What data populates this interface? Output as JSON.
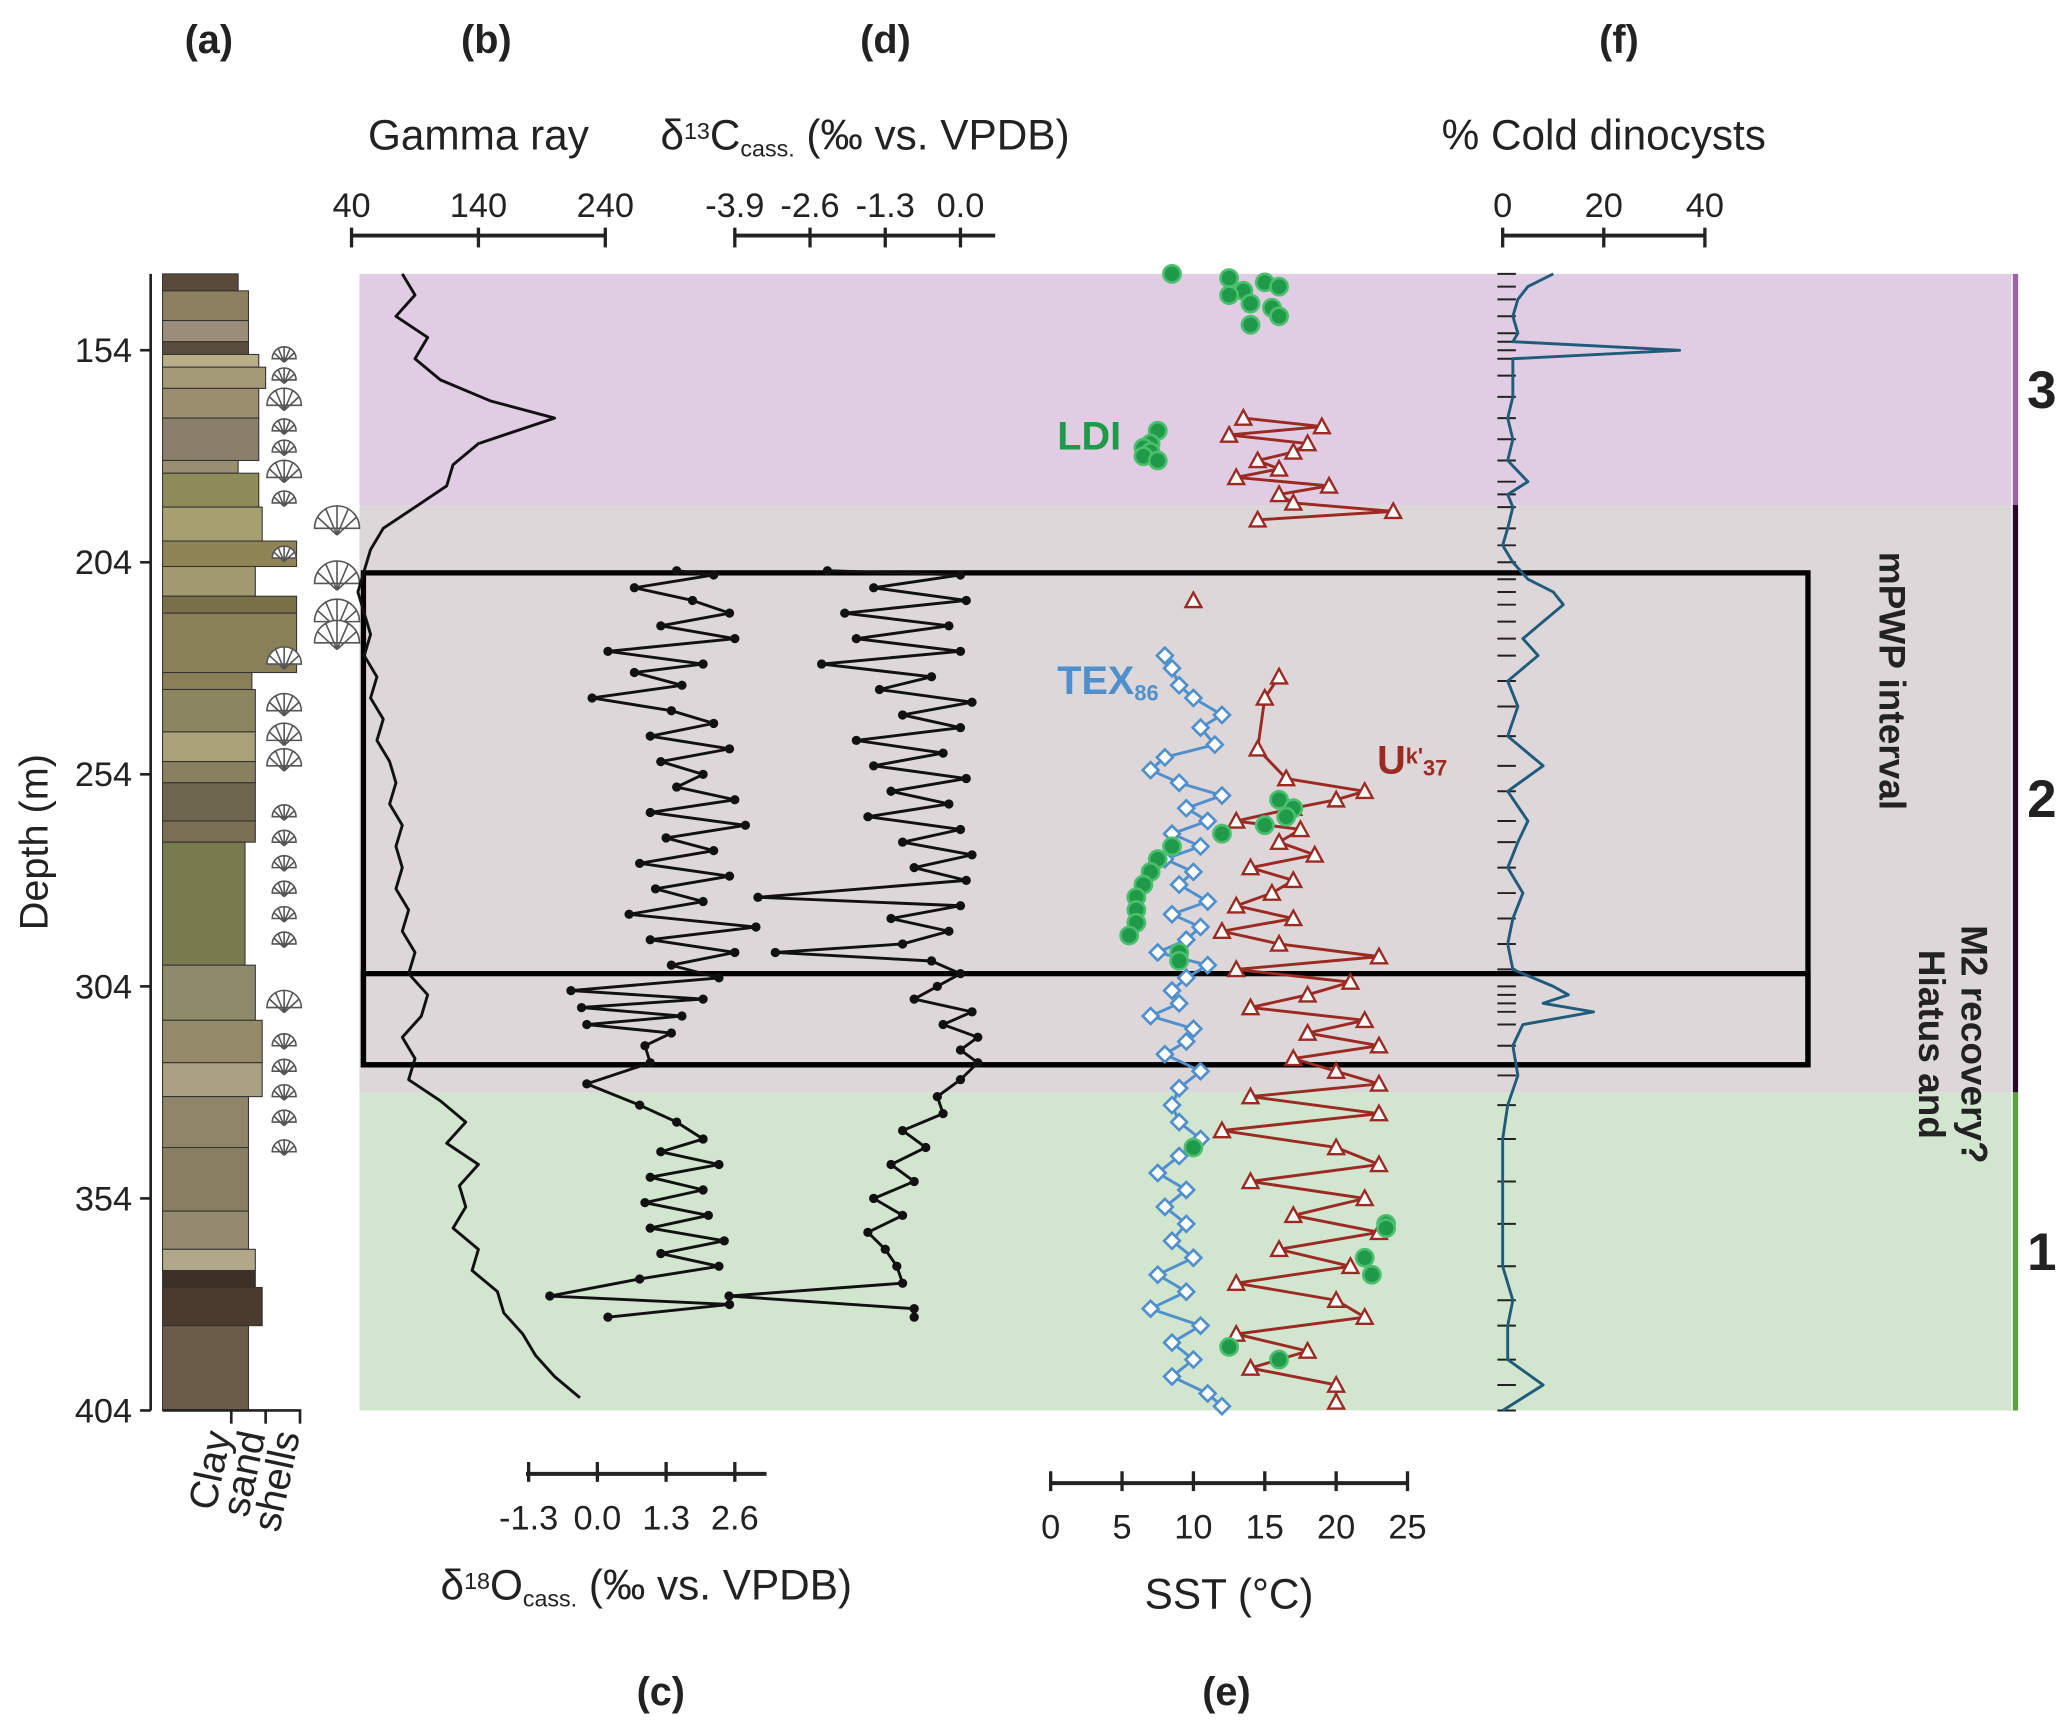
{
  "chart_data": [
    {
      "type": "lithology",
      "label": "(a)",
      "ylabel": "Depth (m)",
      "ylim": [
        136,
        404
      ],
      "yticks": [
        154,
        204,
        254,
        304,
        354,
        404
      ],
      "xcategories": [
        "Clay",
        "sand",
        "shells"
      ],
      "layers": {
        "depth_top": [
          136,
          140,
          147,
          152,
          155,
          158,
          163,
          170,
          180,
          183,
          191,
          199,
          205,
          212,
          216,
          230,
          234,
          244,
          251,
          256,
          265,
          270,
          299,
          312,
          322,
          330,
          342,
          357,
          366,
          371,
          375,
          384
        ],
        "depth_bottom": [
          140,
          147,
          152,
          155,
          158,
          163,
          170,
          180,
          183,
          191,
          199,
          205,
          212,
          216,
          230,
          234,
          244,
          251,
          256,
          265,
          270,
          299,
          312,
          322,
          330,
          342,
          357,
          366,
          371,
          375,
          384,
          404
        ],
        "grain": [
          1.1,
          1.25,
          1.25,
          1.25,
          1.4,
          1.5,
          1.4,
          1.4,
          1.1,
          1.4,
          1.45,
          1.95,
          1.35,
          1.95,
          1.95,
          1.3,
          1.35,
          1.35,
          1.35,
          1.35,
          1.35,
          1.2,
          1.35,
          1.45,
          1.45,
          1.25,
          1.25,
          1.25,
          1.35,
          1.35,
          1.45,
          1.25
        ],
        "colors": [
          "#5a4a3a",
          "#8d8060",
          "#9a8e7a",
          "#5b4d3d",
          "#b8ae8a",
          "#a49a78",
          "#9a8e6e",
          "#8a7f6a",
          "#9a8e70",
          "#8e8a5a",
          "#a6a070",
          "#8e8455",
          "#a29a70",
          "#7a7048",
          "#8a8058",
          "#8a8058",
          "#8b8660",
          "#a9a178",
          "#8a8060",
          "#6f6650",
          "#7a6f55",
          "#7a7a4f",
          "#8e8a6c",
          "#948a6a",
          "#a8a080",
          "#8f8568",
          "#8a7e62",
          "#938a70",
          "#b0a888",
          "#3c3028",
          "#4a3b2e",
          "#6a5c48"
        ]
      },
      "shells": {
        "depth": [
          156,
          161,
          167,
          173,
          178,
          184,
          190,
          196,
          203,
          209,
          218,
          223,
          228,
          239,
          246,
          252,
          264,
          270,
          276,
          282,
          288,
          294,
          309,
          318,
          324,
          330,
          336,
          343
        ],
        "size": [
          1,
          1,
          2,
          1,
          1,
          2,
          1,
          3,
          1,
          3,
          3,
          3,
          2,
          2,
          2,
          2,
          1,
          1,
          1,
          1,
          1,
          1,
          2,
          1,
          1,
          1,
          1,
          1
        ]
      },
      "zones": [
        {
          "label": "3",
          "from": 136,
          "to": 190.5,
          "color": "#e0cde3",
          "bar_color": "#a060a8"
        },
        {
          "label": "2",
          "from": 190.5,
          "to": 329,
          "color": "#ddd7d9",
          "bar_color": "#2a0a2a"
        },
        {
          "label": "1",
          "from": 329,
          "to": 404,
          "color": "#d2e5cf",
          "bar_color": "#5aa040"
        }
      ],
      "boxes": [
        {
          "label": [
            "mPWP interval"
          ],
          "from": 206.5,
          "to": 322.5
        },
        {
          "label": [
            "Hiatus and",
            "M2 recovery?"
          ],
          "from": 301,
          "to": 322.5
        }
      ]
    },
    {
      "type": "line",
      "label": "(b)",
      "title": "Gamma ray",
      "xlim": [
        40,
        240
      ],
      "xticks": [
        40,
        140,
        240
      ],
      "color": "#111111",
      "markers": false,
      "depth": [
        136,
        141,
        146,
        151,
        156,
        161,
        166,
        170,
        176,
        181,
        186,
        191,
        196,
        201,
        206,
        211,
        216,
        221,
        226,
        231,
        236,
        241,
        246,
        251,
        256,
        261,
        266,
        271,
        276,
        281,
        286,
        291,
        296,
        301,
        306,
        311,
        316,
        321,
        326,
        331,
        336,
        341,
        346,
        351,
        356,
        361,
        366,
        371,
        376,
        381,
        386,
        391,
        396,
        401
      ],
      "values": [
        80,
        90,
        75,
        100,
        90,
        110,
        150,
        200,
        140,
        120,
        115,
        90,
        65,
        55,
        50,
        45,
        50,
        55,
        50,
        60,
        55,
        65,
        60,
        70,
        75,
        70,
        80,
        75,
        80,
        75,
        85,
        80,
        90,
        85,
        100,
        95,
        80,
        90,
        85,
        110,
        130,
        115,
        140,
        125,
        130,
        120,
        140,
        135,
        155,
        160,
        175,
        185,
        200,
        220
      ]
    },
    {
      "type": "line",
      "label": "(c)",
      "xlabel": {
        "text": "δ",
        "sup": "18",
        "main": "O",
        "sub": "cass.",
        "rest": " (‰ vs. VPDB)"
      },
      "xlim": [
        -1.35,
        3.2
      ],
      "xticks": [
        -1.3,
        {
          "value": 0,
          "label": "0.0"
        },
        1.3,
        2.6
      ],
      "color": "#111111",
      "markers": true,
      "depth": [
        206,
        207,
        210,
        213,
        216,
        219,
        222,
        225,
        228,
        230,
        233,
        236,
        239,
        242,
        245,
        248,
        251,
        254,
        257,
        260,
        263,
        266,
        269,
        272,
        275,
        278,
        281,
        284,
        287,
        290,
        293,
        296,
        299,
        302,
        305,
        307,
        309,
        311,
        313,
        315,
        318,
        322,
        327,
        332,
        336,
        340,
        343,
        346,
        349,
        352,
        355,
        358,
        361,
        364,
        367,
        370,
        373,
        377,
        379,
        382
      ],
      "values": [
        1.5,
        2.2,
        0.7,
        1.8,
        2.5,
        1.2,
        2.6,
        0.2,
        2.0,
        0.7,
        1.6,
        -0.1,
        1.4,
        2.2,
        1.0,
        2.5,
        1.2,
        2.0,
        1.5,
        2.6,
        1.0,
        2.8,
        1.3,
        2.2,
        0.8,
        2.5,
        1.1,
        2.0,
        0.6,
        3.0,
        1.0,
        2.6,
        1.4,
        2.3,
        -0.5,
        2.0,
        -0.3,
        1.6,
        -0.2,
        1.4,
        0.9,
        1.0,
        -0.2,
        0.8,
        1.5,
        2.0,
        1.2,
        2.3,
        1.0,
        2.0,
        0.9,
        2.1,
        1.0,
        2.4,
        1.2,
        2.3,
        0.8,
        -0.9,
        2.5,
        0.2
      ]
    },
    {
      "type": "line",
      "label": "(d)",
      "title": {
        "text": "δ",
        "sup": "13",
        "main": "C",
        "sub": "cass.",
        "rest": " (‰ vs. VPDB)"
      },
      "xlim": [
        -3.9,
        0.6
      ],
      "xticks": [
        -3.9,
        -2.6,
        -1.3,
        {
          "value": 0,
          "label": "0.0"
        }
      ],
      "color": "#111111",
      "markers": true,
      "depth": [
        206,
        207,
        210,
        213,
        216,
        219,
        222,
        225,
        228,
        231,
        234,
        237,
        240,
        243,
        246,
        249,
        252,
        255,
        258,
        261,
        264,
        267,
        270,
        273,
        276,
        279,
        283,
        285,
        288,
        291,
        294,
        296,
        298,
        301,
        304,
        307,
        310,
        313,
        316,
        319,
        322,
        326,
        330,
        334,
        338,
        342,
        346,
        350,
        354,
        358,
        362,
        366,
        370,
        374,
        377,
        380,
        382
      ],
      "values": [
        -2.3,
        0.0,
        -1.5,
        0.1,
        -2.0,
        -0.2,
        -1.8,
        0.0,
        -2.4,
        -0.5,
        -1.4,
        0.2,
        -1.0,
        0.0,
        -1.8,
        -0.3,
        -1.5,
        0.1,
        -1.2,
        -0.2,
        -1.6,
        0.0,
        -1.0,
        0.2,
        -0.8,
        0.1,
        -3.5,
        0.0,
        -1.2,
        -0.2,
        -1.0,
        -3.2,
        -0.5,
        0.0,
        -0.4,
        -0.8,
        0.2,
        -0.3,
        0.3,
        0.0,
        0.3,
        0.0,
        -0.4,
        -0.3,
        -1.0,
        -0.6,
        -1.2,
        -0.8,
        -1.5,
        -1.0,
        -1.6,
        -1.3,
        -1.1,
        -1.0,
        -4.0,
        -0.8,
        -0.8
      ]
    },
    {
      "type": "multi",
      "label": "(e)",
      "xlabel": "SST (°C)",
      "xlim": [
        0,
        25
      ],
      "xticks": [
        0,
        5,
        10,
        15,
        20,
        25
      ],
      "series": [
        {
          "name": {
            "text": "TEX",
            "sub": "86"
          },
          "color": "#4f8fcc",
          "marker": "diamond",
          "line": true,
          "depth": [
            226,
            229,
            233,
            236,
            240,
            243,
            247,
            250,
            253,
            256,
            259,
            262,
            265,
            268,
            271,
            274,
            277,
            280,
            284,
            287,
            290,
            293,
            296,
            299,
            302,
            305,
            308,
            311,
            314,
            317,
            320,
            324,
            328,
            332,
            336,
            340,
            344,
            348,
            352,
            356,
            360,
            364,
            368,
            372,
            376,
            380,
            384,
            388,
            392,
            396,
            400,
            403
          ],
          "values": [
            8.0,
            8.5,
            9.0,
            10.0,
            12.0,
            10.5,
            11.5,
            8.0,
            7.0,
            9.0,
            12.0,
            9.5,
            11.0,
            8.5,
            10.5,
            8.0,
            10.0,
            9.0,
            11.0,
            8.5,
            10.5,
            9.5,
            7.5,
            11.0,
            9.5,
            8.5,
            9.0,
            7.0,
            10.0,
            9.5,
            8.0,
            10.5,
            9.0,
            8.5,
            9.0,
            10.5,
            9.0,
            7.5,
            9.5,
            8.0,
            9.5,
            8.5,
            10.0,
            7.5,
            9.5,
            7.0,
            10.5,
            8.5,
            10.0,
            8.5,
            11.0,
            12.0
          ]
        },
        {
          "name": {
            "text": "U",
            "sup": "k'",
            "sub": "37"
          },
          "color": "#9a2a22",
          "marker": "triangle",
          "line": true,
          "depth": [
            170,
            172,
            174,
            176,
            178,
            180,
            182,
            184,
            186,
            188,
            190,
            192,
            194,
            null,
            213,
            null,
            231,
            236,
            248,
            255,
            258,
            260,
            262,
            265,
            267,
            270,
            273,
            276,
            279,
            282,
            285,
            288,
            291,
            294,
            297,
            300,
            303,
            306,
            309,
            312,
            315,
            318,
            321,
            324,
            327,
            330,
            334,
            338,
            342,
            346,
            350,
            354,
            358,
            362,
            366,
            370,
            374,
            378,
            382,
            386,
            390,
            394,
            398,
            402
          ],
          "values": [
            13.5,
            19,
            12.5,
            18,
            17,
            14.5,
            16,
            13,
            19.5,
            16,
            17,
            24,
            14.5,
            null,
            10,
            null,
            16,
            15,
            14.5,
            16.5,
            22,
            20,
            17,
            13,
            17.5,
            16,
            18.5,
            14,
            17,
            15.5,
            13,
            17,
            12,
            16,
            23,
            13,
            21,
            18,
            14,
            22,
            18,
            23,
            17,
            20,
            23,
            14,
            23,
            12,
            20,
            23,
            14,
            22,
            17,
            23,
            16,
            21,
            13,
            20,
            22,
            13,
            18,
            14,
            20,
            20
          ]
        },
        {
          "name": {
            "text": "LDI"
          },
          "color": "#1e9a48",
          "marker": "circle",
          "line": false,
          "depth": [
            136,
            137,
            138,
            139,
            140,
            141,
            143,
            144,
            146,
            148,
            173,
            176,
            177,
            178,
            179,
            180,
            260,
            262,
            264,
            266,
            268,
            271,
            274,
            277,
            280,
            283,
            286,
            289,
            292,
            296,
            298,
            342,
            360,
            361,
            368,
            372,
            389,
            392
          ],
          "values": [
            8.5,
            12.5,
            15,
            16,
            13.5,
            12.5,
            14,
            15.5,
            16,
            14,
            7.5,
            7,
            6.5,
            7,
            6.5,
            7.5,
            16,
            17,
            16.5,
            15,
            12,
            8.5,
            7.5,
            7,
            6.5,
            6,
            6,
            6,
            5.5,
            9,
            9,
            10,
            23.5,
            23.5,
            22,
            22.5,
            12.5,
            16
          ]
        }
      ]
    },
    {
      "type": "line",
      "label": "(f)",
      "title": "% Cold dinocysts",
      "xlim": [
        0,
        40
      ],
      "xticks": [
        0,
        20,
        40
      ],
      "color": "#1f5b7a",
      "markers": false,
      "sample_ticks": true,
      "depth": [
        136,
        139,
        142,
        146,
        150,
        152,
        154,
        156,
        160,
        165,
        170,
        175,
        180,
        185,
        188,
        191,
        196,
        200,
        204,
        208,
        211,
        214,
        218,
        222,
        226,
        232,
        238,
        245,
        252,
        258,
        265,
        270,
        276,
        282,
        288,
        294,
        300,
        304,
        306,
        308,
        310,
        313,
        318,
        325,
        332,
        340,
        350,
        360,
        370,
        378,
        384,
        392,
        398,
        404
      ],
      "values": [
        10,
        5,
        3,
        2,
        3,
        2,
        35,
        2,
        2,
        2,
        1,
        2,
        1,
        5,
        1,
        2,
        1,
        0,
        2,
        5,
        10,
        12,
        8,
        4,
        7,
        1,
        3,
        1,
        8,
        1,
        5,
        3,
        1,
        4,
        2,
        1,
        2,
        10,
        13,
        8,
        18,
        4,
        2,
        3,
        1,
        0,
        0,
        0,
        0,
        2,
        1,
        1,
        8,
        0
      ]
    }
  ]
}
